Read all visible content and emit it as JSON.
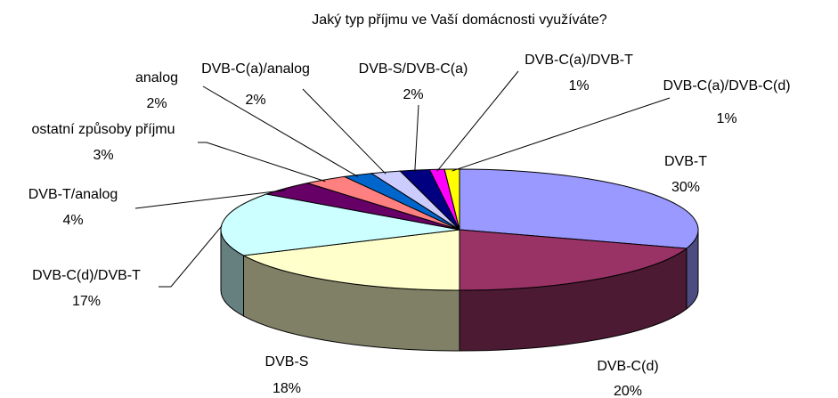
{
  "chart_data": {
    "type": "pie",
    "title": "Jaký typ příjmu ve Vaší domácnosti využíváte?",
    "categories": [
      "DVB-T",
      "DVB-C(d)",
      "DVB-S",
      "DVB-C(d)/DVB-T",
      "DVB-T/analog",
      "ostatní způsoby příjmu",
      "analog",
      "DVB-C(a)/analog",
      "DVB-S/DVB-C(a)",
      "DVB-C(a)/DVB-T",
      "DVB-C(a)/DVB-C(d)"
    ],
    "values": [
      30,
      20,
      18,
      17,
      4,
      3,
      2,
      2,
      2,
      1,
      1
    ],
    "value_labels": [
      "30%",
      "20%",
      "18%",
      "17%",
      "4%",
      "3%",
      "2%",
      "2%",
      "2%",
      "1%",
      "1%"
    ],
    "colors": [
      "#9999ff",
      "#993366",
      "#ffffcc",
      "#ccffff",
      "#660066",
      "#ff8080",
      "#0066cc",
      "#ccccff",
      "#000080",
      "#ff00ff",
      "#ffff00"
    ]
  }
}
